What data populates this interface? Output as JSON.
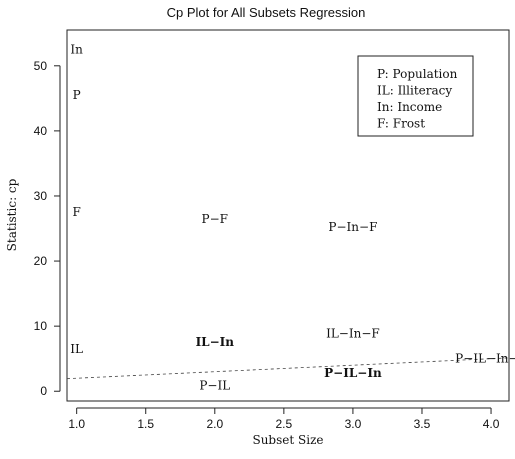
{
  "chart_data": {
    "type": "scatter",
    "title": "Cp Plot for All Subsets Regression",
    "xlabel": "Subset Size",
    "ylabel": "Statistic: cp",
    "xlim": [
      0.93,
      4.13
    ],
    "ylim": [
      -1.5,
      55.5
    ],
    "x_ticks": [
      1.0,
      1.5,
      2.0,
      2.5,
      3.0,
      3.5,
      4.0
    ],
    "x_tick_labels": [
      "1.0",
      "1.5",
      "2.0",
      "2.5",
      "3.0",
      "3.5",
      "4.0"
    ],
    "y_ticks": [
      0,
      10,
      20,
      30,
      40,
      50
    ],
    "y_tick_labels": [
      "0",
      "10",
      "20",
      "30",
      "40",
      "50"
    ],
    "grid": false,
    "points": [
      {
        "label": "In",
        "x": 1,
        "y": 52.5,
        "bold": false
      },
      {
        "label": "P",
        "x": 1,
        "y": 45.5,
        "bold": false
      },
      {
        "label": "F",
        "x": 1,
        "y": 27.5,
        "bold": false
      },
      {
        "label": "IL",
        "x": 1,
        "y": 6.5,
        "bold": false
      },
      {
        "label": "P−F",
        "x": 2,
        "y": 26.5,
        "bold": false
      },
      {
        "label": "IL−In",
        "x": 2,
        "y": 7.6,
        "bold": true
      },
      {
        "label": "P−IL",
        "x": 2,
        "y": 0.9,
        "bold": false
      },
      {
        "label": "P−In−F",
        "x": 3,
        "y": 25.2,
        "bold": false
      },
      {
        "label": "IL−In−F",
        "x": 3,
        "y": 8.9,
        "bold": false
      },
      {
        "label": "P−IL−In",
        "x": 3,
        "y": 2.8,
        "bold": true
      },
      {
        "label": "P−IL−In−F",
        "x": 4,
        "y": 5.0,
        "bold": false
      }
    ],
    "reference_line": {
      "style": "dashed",
      "x": [
        0.93,
        4.13
      ],
      "y": [
        1.93,
        5.13
      ]
    },
    "legend": {
      "position": "top-right",
      "entries": [
        "P: Population",
        "IL: Illiteracy",
        "In: Income",
        "F: Frost"
      ]
    }
  }
}
